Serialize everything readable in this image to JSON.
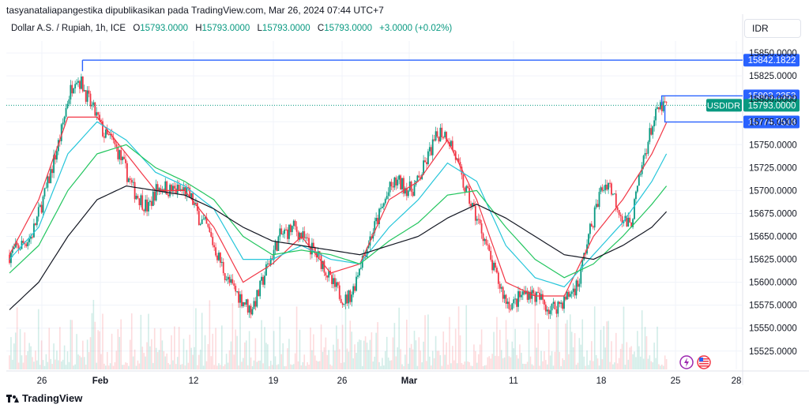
{
  "attribution": "tasyanataliapangestika dipublikasikan pada TradingView.com, Mar 26, 2024 07:44 UTC+7",
  "legend": {
    "symbol": "Dollar A.S. / Rupiah, 1h, ICE",
    "open_label": "O",
    "open": "15793.0000",
    "high_label": "H",
    "high": "15793.0000",
    "low_label": "L",
    "low": "15793.0000",
    "close_label": "C",
    "close": "15793.0000",
    "change": "+3.0000 (+0.02%)"
  },
  "currency_button": "IDR",
  "brand": "TradingView",
  "colors": {
    "up": "#089981",
    "down": "#f23645",
    "ema_fast": "#f23645",
    "ema_mid": "#26c6da",
    "ema_slow": "#22c55e",
    "ema_long": "#131722",
    "hline": "#2962ff"
  },
  "chart_data": {
    "type": "candlestick",
    "y_axis_ticks": [
      "15850.0000",
      "15825.0000",
      "15800.0000",
      "15775.0000",
      "15750.0000",
      "15725.0000",
      "15700.0000",
      "15675.0000",
      "15650.0000",
      "15625.0000",
      "15600.0000",
      "15575.0000",
      "15550.0000",
      "15525.0000"
    ],
    "ylim": [
      15505,
      15863
    ],
    "x_axis_ticks": [
      "26",
      "Feb",
      "12",
      "19",
      "26",
      "Mar",
      "11",
      "18",
      "25",
      "28"
    ],
    "horizontal_levels": [
      {
        "value": "15842.1822"
      },
      {
        "value": "15803.2353"
      },
      {
        "value": "15774.7518"
      }
    ],
    "last_price": {
      "symbol": "USDIDR",
      "value": "15793.0000"
    },
    "price_path": [
      [
        0,
        15630
      ],
      [
        3,
        15650
      ],
      [
        5,
        15700
      ],
      [
        7,
        15760
      ],
      [
        8,
        15800
      ],
      [
        9,
        15825
      ],
      [
        10,
        15815
      ],
      [
        11,
        15795
      ],
      [
        12,
        15780
      ],
      [
        13,
        15760
      ],
      [
        14,
        15755
      ],
      [
        15,
        15740
      ],
      [
        16,
        15720
      ],
      [
        17,
        15700
      ],
      [
        18,
        15690
      ],
      [
        19,
        15680
      ],
      [
        20,
        15700
      ],
      [
        21,
        15705
      ],
      [
        22,
        15700
      ],
      [
        23,
        15700
      ],
      [
        24,
        15700
      ],
      [
        25,
        15690
      ],
      [
        26,
        15670
      ],
      [
        27,
        15660
      ],
      [
        28,
        15640
      ],
      [
        29,
        15620
      ],
      [
        30,
        15600
      ],
      [
        31,
        15590
      ],
      [
        32,
        15580
      ],
      [
        33,
        15570
      ],
      [
        34,
        15585
      ],
      [
        35,
        15610
      ],
      [
        36,
        15630
      ],
      [
        37,
        15650
      ],
      [
        38,
        15655
      ],
      [
        39,
        15660
      ],
      [
        40,
        15650
      ],
      [
        41,
        15640
      ],
      [
        42,
        15630
      ],
      [
        43,
        15620
      ],
      [
        44,
        15600
      ],
      [
        45,
        15590
      ],
      [
        46,
        15580
      ],
      [
        47,
        15590
      ],
      [
        48,
        15620
      ],
      [
        49,
        15640
      ],
      [
        50,
        15660
      ],
      [
        51,
        15680
      ],
      [
        52,
        15700
      ],
      [
        53,
        15710
      ],
      [
        54,
        15705
      ],
      [
        55,
        15700
      ],
      [
        56,
        15710
      ],
      [
        57,
        15730
      ],
      [
        58,
        15750
      ],
      [
        59,
        15765
      ],
      [
        60,
        15760
      ],
      [
        61,
        15740
      ],
      [
        62,
        15710
      ],
      [
        63,
        15690
      ],
      [
        64,
        15670
      ],
      [
        65,
        15650
      ],
      [
        66,
        15620
      ],
      [
        67,
        15600
      ],
      [
        68,
        15580
      ],
      [
        69,
        15575
      ],
      [
        70,
        15585
      ],
      [
        71,
        15590
      ],
      [
        72,
        15585
      ],
      [
        73,
        15580
      ],
      [
        74,
        15570
      ],
      [
        75,
        15575
      ],
      [
        76,
        15580
      ],
      [
        77,
        15590
      ],
      [
        78,
        15600
      ],
      [
        79,
        15640
      ],
      [
        80,
        15670
      ],
      [
        81,
        15700
      ],
      [
        82,
        15710
      ],
      [
        83,
        15690
      ],
      [
        84,
        15670
      ],
      [
        85,
        15660
      ],
      [
        86,
        15700
      ],
      [
        87,
        15740
      ],
      [
        88,
        15770
      ],
      [
        89,
        15790
      ],
      [
        90,
        15793
      ]
    ],
    "ema_lines": [
      {
        "name": "ema_fast",
        "values": [
          [
            0,
            15630
          ],
          [
            4,
            15690
          ],
          [
            8,
            15780
          ],
          [
            12,
            15780
          ],
          [
            16,
            15740
          ],
          [
            20,
            15700
          ],
          [
            24,
            15700
          ],
          [
            28,
            15660
          ],
          [
            32,
            15600
          ],
          [
            36,
            15620
          ],
          [
            40,
            15650
          ],
          [
            44,
            15610
          ],
          [
            48,
            15620
          ],
          [
            52,
            15690
          ],
          [
            56,
            15710
          ],
          [
            60,
            15755
          ],
          [
            64,
            15690
          ],
          [
            68,
            15600
          ],
          [
            72,
            15585
          ],
          [
            76,
            15585
          ],
          [
            80,
            15650
          ],
          [
            84,
            15690
          ],
          [
            88,
            15740
          ],
          [
            90,
            15774
          ]
        ]
      },
      {
        "name": "ema_mid",
        "values": [
          [
            0,
            15625
          ],
          [
            4,
            15660
          ],
          [
            8,
            15740
          ],
          [
            12,
            15775
          ],
          [
            16,
            15755
          ],
          [
            20,
            15720
          ],
          [
            24,
            15705
          ],
          [
            28,
            15680
          ],
          [
            32,
            15625
          ],
          [
            36,
            15625
          ],
          [
            40,
            15640
          ],
          [
            44,
            15625
          ],
          [
            48,
            15620
          ],
          [
            52,
            15660
          ],
          [
            56,
            15690
          ],
          [
            60,
            15730
          ],
          [
            64,
            15710
          ],
          [
            68,
            15640
          ],
          [
            72,
            15605
          ],
          [
            76,
            15595
          ],
          [
            80,
            15630
          ],
          [
            84,
            15665
          ],
          [
            88,
            15710
          ],
          [
            90,
            15740
          ]
        ]
      },
      {
        "name": "ema_slow",
        "values": [
          [
            0,
            15610
          ],
          [
            4,
            15640
          ],
          [
            8,
            15700
          ],
          [
            12,
            15740
          ],
          [
            16,
            15750
          ],
          [
            20,
            15725
          ],
          [
            24,
            15710
          ],
          [
            28,
            15690
          ],
          [
            32,
            15650
          ],
          [
            36,
            15630
          ],
          [
            40,
            15635
          ],
          [
            44,
            15630
          ],
          [
            48,
            15620
          ],
          [
            52,
            15645
          ],
          [
            56,
            15665
          ],
          [
            60,
            15695
          ],
          [
            64,
            15700
          ],
          [
            68,
            15660
          ],
          [
            72,
            15625
          ],
          [
            76,
            15605
          ],
          [
            80,
            15620
          ],
          [
            84,
            15650
          ],
          [
            88,
            15685
          ],
          [
            90,
            15705
          ]
        ]
      },
      {
        "name": "ema_long",
        "values": [
          [
            0,
            15570
          ],
          [
            4,
            15600
          ],
          [
            8,
            15650
          ],
          [
            12,
            15690
          ],
          [
            16,
            15705
          ],
          [
            20,
            15700
          ],
          [
            24,
            15695
          ],
          [
            28,
            15680
          ],
          [
            32,
            15660
          ],
          [
            36,
            15645
          ],
          [
            40,
            15640
          ],
          [
            44,
            15635
          ],
          [
            48,
            15630
          ],
          [
            52,
            15640
          ],
          [
            56,
            15650
          ],
          [
            60,
            15670
          ],
          [
            64,
            15685
          ],
          [
            68,
            15670
          ],
          [
            72,
            15650
          ],
          [
            76,
            15630
          ],
          [
            80,
            15625
          ],
          [
            84,
            15640
          ],
          [
            88,
            15660
          ],
          [
            90,
            15677
          ]
        ]
      }
    ]
  }
}
